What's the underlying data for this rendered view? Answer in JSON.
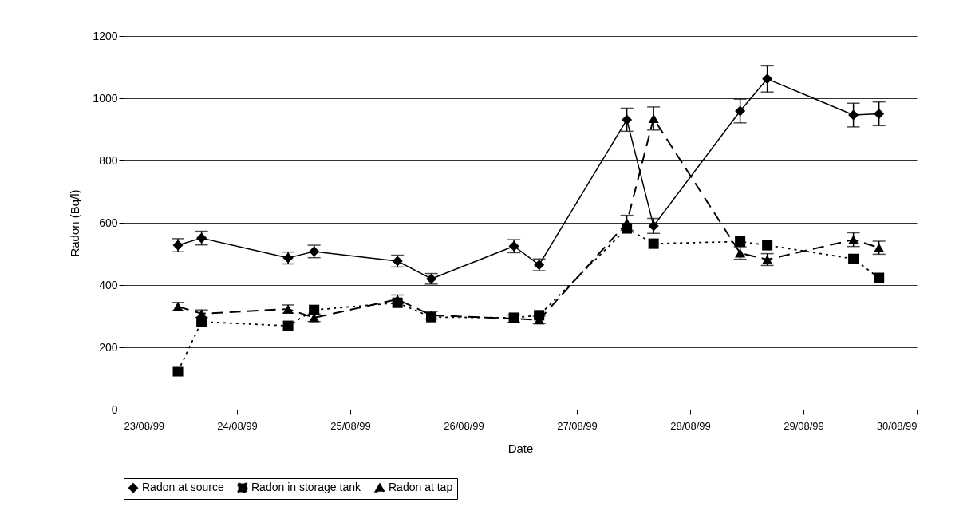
{
  "chart_data": {
    "type": "line",
    "xlabel": "Date",
    "ylabel": "Radon (Bq/l)",
    "x": [
      "1999-08-23T11:30",
      "1999-08-23T16:30",
      "1999-08-24T10:50",
      "1999-08-24T16:20",
      "1999-08-25T10:00",
      "1999-08-25T17:10",
      "1999-08-26T10:40",
      "1999-08-26T16:00",
      "1999-08-27T10:35",
      "1999-08-27T16:15",
      "1999-08-28T10:35",
      "1999-08-28T16:20",
      "1999-08-29T10:35",
      "1999-08-29T16:00"
    ],
    "series": [
      {
        "name": "Radon at source",
        "color": "#000000",
        "marker": "diamond",
        "line_style": "solid",
        "values": [
          528,
          551,
          487,
          508,
          477,
          420,
          525,
          465,
          931,
          590,
          959,
          1062,
          946,
          950
        ],
        "errors": [
          21,
          22,
          19,
          20,
          19,
          17,
          21,
          19,
          37,
          24,
          38,
          42,
          38,
          38
        ]
      },
      {
        "name": "Radon in storage tank",
        "color": "#000000",
        "marker": "square",
        "line_style": "dotted",
        "values": [
          123,
          282,
          269,
          320,
          343,
          297,
          295,
          303,
          582,
          533,
          540,
          528,
          484,
          423
        ]
      },
      {
        "name": "Radon at tap",
        "color": "#000000",
        "marker": "triangle",
        "line_style": "dashed",
        "values": [
          331,
          308,
          323,
          295,
          354,
          303,
          292,
          288,
          600,
          935,
          503,
          482,
          546,
          520
        ],
        "errors": [
          13,
          12,
          13,
          12,
          14,
          12,
          12,
          12,
          24,
          37,
          20,
          19,
          22,
          21
        ]
      }
    ],
    "xlim": [
      "1999-08-23",
      "1999-08-30"
    ],
    "xticks": [
      {
        "value": "1999-08-23",
        "label": "23/08/99"
      },
      {
        "value": "1999-08-24",
        "label": "24/08/99"
      },
      {
        "value": "1999-08-25",
        "label": "25/08/99"
      },
      {
        "value": "1999-08-26",
        "label": "26/08/99"
      },
      {
        "value": "1999-08-27",
        "label": "27/08/99"
      },
      {
        "value": "1999-08-28",
        "label": "28/08/99"
      },
      {
        "value": "1999-08-29",
        "label": "29/08/99"
      },
      {
        "value": "1999-08-30",
        "label": "30/08/99"
      }
    ],
    "ylim": [
      0,
      1200
    ],
    "yticks": [
      0,
      200,
      400,
      600,
      800,
      1000,
      1200
    ],
    "grid": "y",
    "legend": "bottom"
  }
}
